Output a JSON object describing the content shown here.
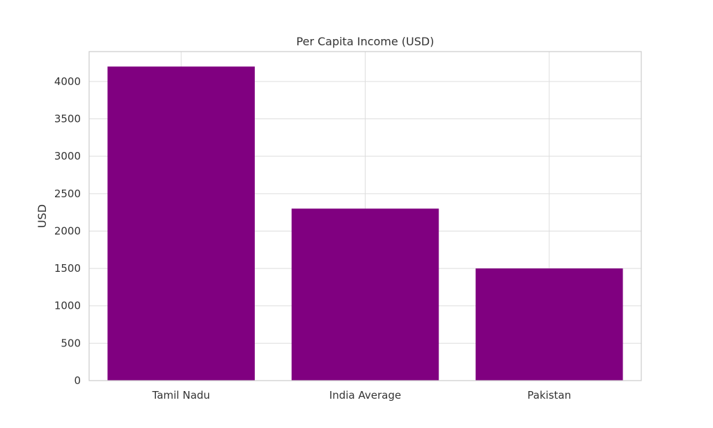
{
  "chart_data": {
    "type": "bar",
    "title": "Per Capita Income (USD)",
    "xlabel": "",
    "ylabel": "USD",
    "categories": [
      "Tamil Nadu",
      "India Average",
      "Pakistan"
    ],
    "values": [
      4200,
      2300,
      1500
    ],
    "ylim": [
      0,
      4400
    ],
    "yticks": [
      0,
      500,
      1000,
      1500,
      2000,
      2500,
      3000,
      3500,
      4000
    ],
    "bar_color": "#800080",
    "grid": true,
    "legend": "none"
  }
}
